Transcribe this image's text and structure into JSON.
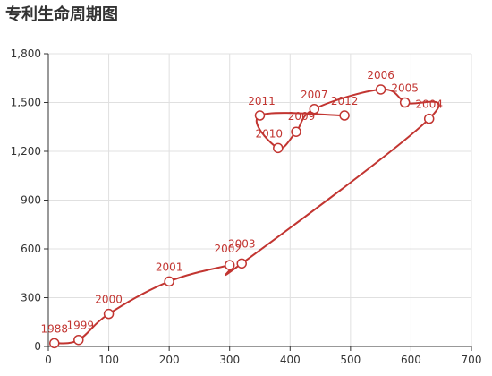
{
  "chart_data": {
    "type": "line",
    "title": "专利生命周期图",
    "xlim": [
      0,
      700
    ],
    "ylim": [
      0,
      1800
    ],
    "xticks": [
      0,
      100,
      200,
      300,
      400,
      500,
      600,
      700
    ],
    "yticks": [
      0,
      300,
      600,
      900,
      1200,
      1500,
      1800
    ],
    "xtick_labels": [
      "0",
      "100",
      "200",
      "300",
      "400",
      "500",
      "600",
      "700"
    ],
    "ytick_labels": [
      "0",
      "300",
      "600",
      "900",
      "1,200",
      "1,500",
      "1,800"
    ],
    "grid": true,
    "series_color": "#c23531",
    "points": [
      {
        "label": "1988",
        "x": 10,
        "y": 20
      },
      {
        "label": "1999",
        "x": 50,
        "y": 40
      },
      {
        "label": "2000",
        "x": 100,
        "y": 200
      },
      {
        "label": "2001",
        "x": 200,
        "y": 400
      },
      {
        "label": "2002",
        "x": 300,
        "y": 500
      },
      {
        "label": "2003",
        "x": 320,
        "y": 510
      },
      {
        "label": "2004",
        "x": 630,
        "y": 1400
      },
      {
        "label": "2005",
        "x": 590,
        "y": 1500
      },
      {
        "label": "2006",
        "x": 550,
        "y": 1580
      },
      {
        "label": "2007",
        "x": 440,
        "y": 1460
      },
      {
        "label": "2009",
        "x": 410,
        "y": 1320
      },
      {
        "label": "2010",
        "x": 380,
        "y": 1220
      },
      {
        "label": "2011",
        "x": 350,
        "y": 1420
      },
      {
        "label": "2012",
        "x": 490,
        "y": 1420
      }
    ]
  }
}
